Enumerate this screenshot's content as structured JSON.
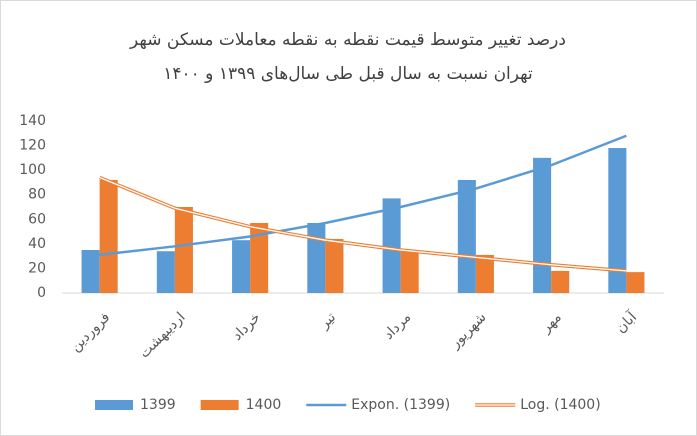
{
  "chart_data": {
    "type": "bar",
    "title": [
      "درصد تغییر متوسط قیمت نقطه به نقطه معاملات مسکن شهر",
      "تهران نسبت به سال قبل طی سال‌های ۱۳۹۹ و ۱۴۰۰"
    ],
    "categories": [
      "فروردین",
      "اردیبهشت",
      "خرداد",
      "تیر",
      "مرداد",
      "شهریور",
      "مهر",
      "آبان"
    ],
    "series": [
      {
        "name": "1399",
        "color": "#5b9bd5",
        "values": [
          35,
          34,
          43,
          57,
          77,
          92,
          110,
          118
        ]
      },
      {
        "name": "1400",
        "color": "#ed7d31",
        "values": [
          92,
          70,
          57,
          44,
          34,
          31,
          18,
          17
        ]
      },
      {
        "name": "Expon. (1399)",
        "type": "line",
        "color": "#5b9bd5",
        "values": [
          31,
          38,
          46,
          57,
          70,
          85,
          104,
          128
        ]
      },
      {
        "name": "Log. (1400)",
        "type": "line",
        "double": true,
        "color": "#ed7d31",
        "values": [
          94,
          69,
          54,
          43,
          35,
          29,
          23,
          18
        ]
      }
    ],
    "ylim": [
      0,
      140
    ],
    "yticks": [
      0,
      20,
      40,
      60,
      80,
      100,
      120,
      140
    ],
    "grid": false
  }
}
